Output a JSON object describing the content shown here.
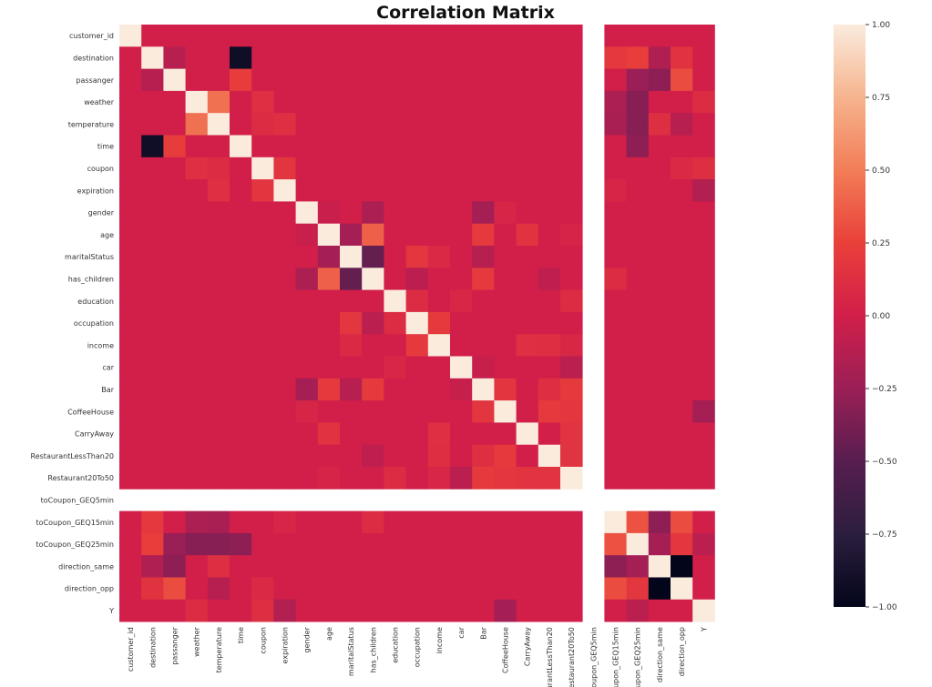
{
  "chart_data": {
    "type": "heatmap",
    "title": "Correlation Matrix",
    "variables": [
      "customer_id",
      "destination",
      "passanger",
      "weather",
      "temperature",
      "time",
      "coupon",
      "expiration",
      "gender",
      "age",
      "maritalStatus",
      "has_children",
      "education",
      "occupation",
      "income",
      "car",
      "Bar",
      "CoffeeHouse",
      "CarryAway",
      "RestaurantLessThan20",
      "Restaurant20To50",
      "toCoupon_GEQ5min",
      "toCoupon_GEQ15min",
      "toCoupon_GEQ25min",
      "direction_same",
      "direction_opp",
      "Y"
    ],
    "value_range": [
      -1,
      1
    ],
    "colorbar": {
      "ticks": [
        1.0,
        0.75,
        0.5,
        0.25,
        0.0,
        -0.25,
        -0.5,
        -0.75,
        -1.0
      ],
      "tick_labels": [
        "1.00",
        "0.75",
        "0.50",
        "0.25",
        "0.00",
        "−0.25",
        "−0.50",
        "−0.75",
        "−1.00"
      ],
      "placement": "right"
    },
    "missing_variable": "toCoupon_GEQ5min",
    "correlations": [
      [
        "destination",
        "time",
        -0.92
      ],
      [
        "destination",
        "toCoupon_GEQ15min",
        0.19
      ],
      [
        "destination",
        "toCoupon_GEQ25min",
        0.23
      ],
      [
        "destination",
        "direction_same",
        -0.15
      ],
      [
        "destination",
        "direction_opp",
        0.15
      ],
      [
        "destination",
        "passanger",
        -0.12
      ],
      [
        "passanger",
        "time",
        0.22
      ],
      [
        "passanger",
        "toCoupon_GEQ25min",
        -0.25
      ],
      [
        "passanger",
        "direction_same",
        -0.3
      ],
      [
        "passanger",
        "direction_opp",
        0.3
      ],
      [
        "weather",
        "temperature",
        0.45
      ],
      [
        "weather",
        "coupon",
        0.13
      ],
      [
        "weather",
        "toCoupon_GEQ15min",
        -0.17
      ],
      [
        "weather",
        "toCoupon_GEQ25min",
        -0.32
      ],
      [
        "weather",
        "Y",
        0.1
      ],
      [
        "temperature",
        "coupon",
        0.1
      ],
      [
        "temperature",
        "expiration",
        0.13
      ],
      [
        "temperature",
        "toCoupon_GEQ15min",
        -0.18
      ],
      [
        "temperature",
        "toCoupon_GEQ25min",
        -0.32
      ],
      [
        "temperature",
        "direction_same",
        0.12
      ],
      [
        "temperature",
        "direction_opp",
        -0.12
      ],
      [
        "time",
        "toCoupon_GEQ25min",
        -0.3
      ],
      [
        "coupon",
        "expiration",
        0.17
      ],
      [
        "coupon",
        "Y",
        0.12
      ],
      [
        "coupon",
        "direction_opp",
        0.08
      ],
      [
        "expiration",
        "Y",
        -0.14
      ],
      [
        "expiration",
        "toCoupon_GEQ15min",
        0.05
      ],
      [
        "gender",
        "age",
        -0.04
      ],
      [
        "gender",
        "has_children",
        -0.17
      ],
      [
        "gender",
        "Bar",
        -0.2
      ],
      [
        "gender",
        "CoffeeHouse",
        0.05
      ],
      [
        "age",
        "maritalStatus",
        -0.2
      ],
      [
        "age",
        "has_children",
        0.38
      ],
      [
        "age",
        "Bar",
        0.2
      ],
      [
        "age",
        "CarryAway",
        0.15
      ],
      [
        "age",
        "Restaurant20To50",
        0.04
      ],
      [
        "maritalStatus",
        "has_children",
        -0.45
      ],
      [
        "maritalStatus",
        "occupation",
        0.18
      ],
      [
        "maritalStatus",
        "Bar",
        -0.12
      ],
      [
        "maritalStatus",
        "income",
        0.08
      ],
      [
        "has_children",
        "Bar",
        0.2
      ],
      [
        "has_children",
        "occupation",
        -0.1
      ],
      [
        "has_children",
        "RestaurantLessThan20",
        -0.08
      ],
      [
        "has_children",
        "toCoupon_GEQ15min",
        0.1
      ],
      [
        "education",
        "occupation",
        0.1
      ],
      [
        "education",
        "Restaurant20To50",
        0.1
      ],
      [
        "education",
        "car",
        0.06
      ],
      [
        "occupation",
        "income",
        0.2
      ],
      [
        "income",
        "CarryAway",
        0.13
      ],
      [
        "income",
        "RestaurantLessThan20",
        0.12
      ],
      [
        "income",
        "Restaurant20To50",
        0.06
      ],
      [
        "car",
        "Bar",
        -0.05
      ],
      [
        "car",
        "Restaurant20To50",
        -0.1
      ],
      [
        "Bar",
        "CoffeeHouse",
        0.17
      ],
      [
        "Bar",
        "RestaurantLessThan20",
        0.12
      ],
      [
        "Bar",
        "Restaurant20To50",
        0.2
      ],
      [
        "CoffeeHouse",
        "RestaurantLessThan20",
        0.2
      ],
      [
        "CoffeeHouse",
        "Restaurant20To50",
        0.18
      ],
      [
        "CoffeeHouse",
        "Y",
        -0.2
      ],
      [
        "CarryAway",
        "Restaurant20To50",
        0.16
      ],
      [
        "RestaurantLessThan20",
        "Restaurant20To50",
        0.16
      ],
      [
        "toCoupon_GEQ15min",
        "toCoupon_GEQ25min",
        0.32
      ],
      [
        "toCoupon_GEQ15min",
        "direction_same",
        -0.3
      ],
      [
        "toCoupon_GEQ15min",
        "direction_opp",
        0.3
      ],
      [
        "toCoupon_GEQ25min",
        "direction_same",
        -0.2
      ],
      [
        "toCoupon_GEQ25min",
        "direction_opp",
        0.18
      ],
      [
        "toCoupon_GEQ25min",
        "Y",
        -0.1
      ],
      [
        "direction_same",
        "direction_opp",
        -1.0
      ]
    ],
    "default_value": 0.0
  }
}
